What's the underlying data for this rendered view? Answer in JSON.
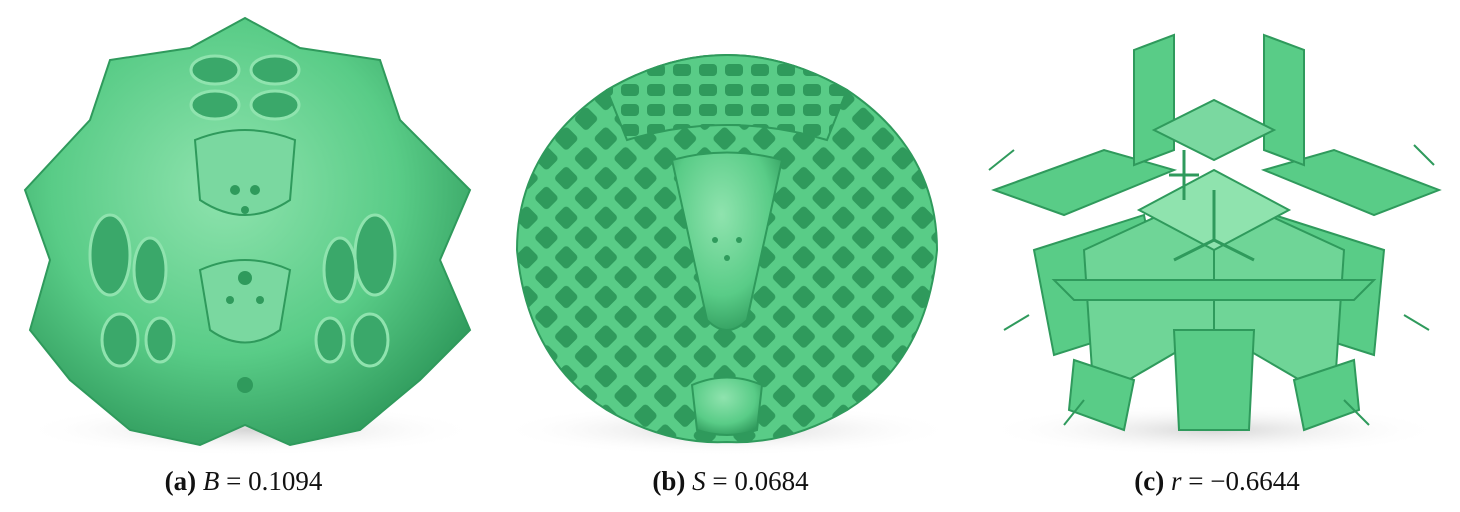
{
  "colors": {
    "material": "#59cc87",
    "material_dark": "#2f9a5c",
    "material_light": "#8fe3ae",
    "shadow": "#e3e3e3"
  },
  "figures": [
    {
      "label": "(a)",
      "variable": "B",
      "equals": "=",
      "value": "0.1094"
    },
    {
      "label": "(b)",
      "variable": "S",
      "equals": "=",
      "value": "0.0684"
    },
    {
      "label": "(c)",
      "variable": "r",
      "equals": "=",
      "value": "−0.6644"
    }
  ]
}
